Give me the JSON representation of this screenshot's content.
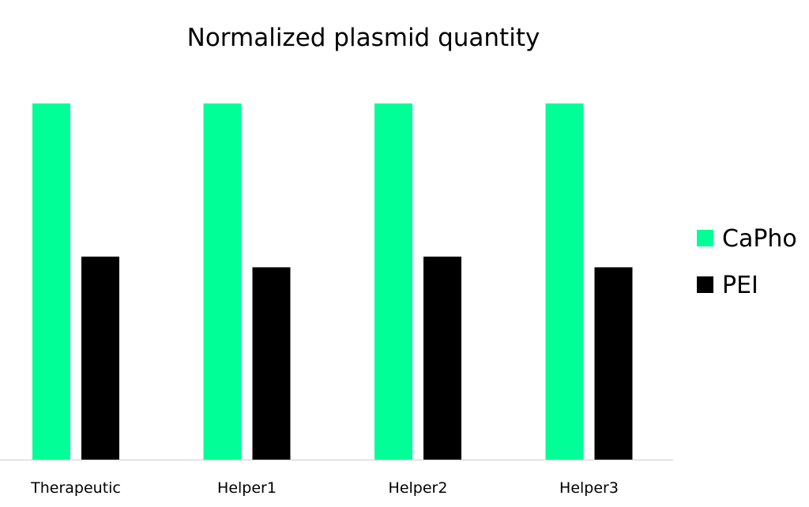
{
  "chart_data": {
    "type": "bar",
    "title": "Normalized plasmid quantity",
    "xlabel": "",
    "ylabel": "",
    "categories": [
      "Therapeutic",
      "Helper1",
      "Helper2",
      "Helper3"
    ],
    "series": [
      {
        "name": "CaPho",
        "color": "#00FF96",
        "values": [
          1.0,
          1.0,
          1.0,
          1.0
        ]
      },
      {
        "name": "PEI",
        "color": "#000000",
        "values": [
          0.57,
          0.54,
          0.57,
          0.54
        ]
      }
    ],
    "ylim": [
      0,
      1.0
    ],
    "grid": false,
    "y_axis_shown": false,
    "legend": "right"
  }
}
